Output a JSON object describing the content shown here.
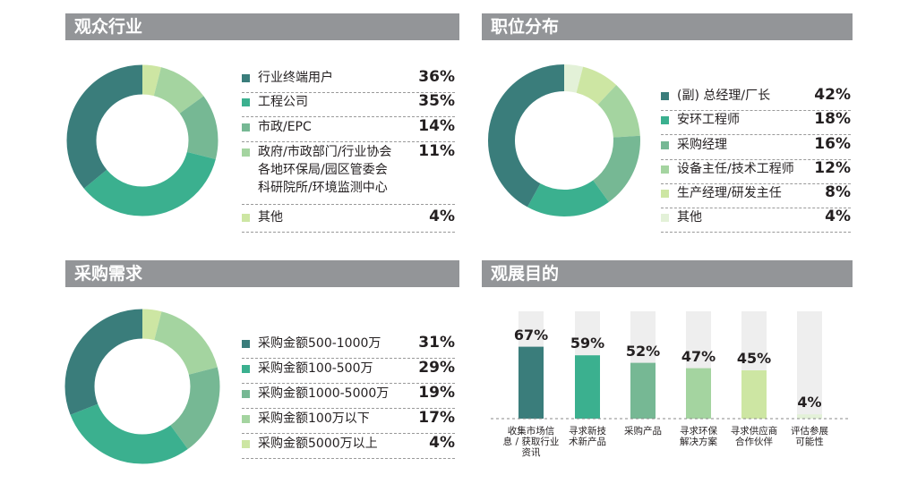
{
  "colors": {
    "header_bg": "#939598",
    "palette": [
      "#3a7d7b",
      "#3bb08f",
      "#76b894",
      "#a4d4a0",
      "#cde6a3",
      "#e3f1d8"
    ],
    "bar_track": "#eeeeee"
  },
  "panels": {
    "audience_industry": {
      "title": "观众行业"
    },
    "job_distribution": {
      "title": "职位分布"
    },
    "purchase_demand": {
      "title": "采购需求"
    },
    "visit_purpose": {
      "title": "观展目的"
    }
  },
  "chart_data": [
    {
      "type": "pie",
      "title": "观众行业",
      "categories": [
        "行业终端用户",
        "工程公司",
        "市政/EPC",
        "政府/市政部门/行业协会\n各地环保局/园区管委会\n科研院所/环境监测中心",
        "其他"
      ],
      "values": [
        36,
        35,
        14,
        11,
        4
      ],
      "value_labels": [
        "36%",
        "35%",
        "14%",
        "11%",
        "4%"
      ]
    },
    {
      "type": "pie",
      "title": "职位分布",
      "categories": [
        "(副) 总经理/厂长",
        "安环工程师",
        "采购经理",
        "设备主任/技术工程师",
        "生产经理/研发主任",
        "其他"
      ],
      "values": [
        42,
        18,
        16,
        12,
        8,
        4
      ],
      "value_labels": [
        "42%",
        "18%",
        "16%",
        "12%",
        "8%",
        "4%"
      ]
    },
    {
      "type": "pie",
      "title": "采购需求",
      "categories": [
        "采购金额500-1000万",
        "采购金额100-500万",
        "采购金额1000-5000万",
        "采购金额100万以下",
        "采购金额5000万以上"
      ],
      "values": [
        31,
        29,
        19,
        17,
        4
      ],
      "value_labels": [
        "31%",
        "29%",
        "19%",
        "17%",
        "4%"
      ]
    },
    {
      "type": "bar",
      "title": "观展目的",
      "categories": [
        "收集市场信\n息 / 获取行业\n资讯",
        "寻求新技\n术新产品",
        "采购产品",
        "寻求环保\n解决方案",
        "寻求供应商\n合作伙伴",
        "评估参展\n可能性"
      ],
      "values": [
        67,
        59,
        52,
        47,
        45,
        4
      ],
      "value_labels": [
        "67%",
        "59%",
        "52%",
        "47%",
        "45%",
        "4%"
      ],
      "ylim": [
        0,
        100
      ]
    }
  ]
}
